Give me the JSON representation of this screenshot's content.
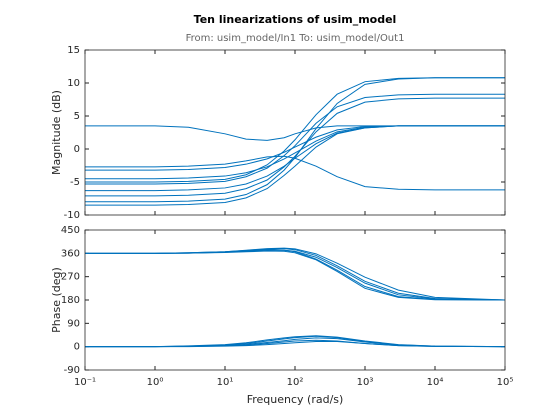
{
  "chart_data": [
    {
      "type": "line",
      "title": "Ten linearizations of usim_model",
      "subtitle": "From: usim_model/In1  To: usim_model/Out1",
      "ylabel": "Magnitude (dB)",
      "xscale": "log",
      "grid": false,
      "x": [
        0.1,
        1,
        3,
        10,
        20,
        40,
        70,
        100,
        200,
        400,
        1000,
        3000,
        10000,
        100000
      ],
      "xlim": [
        0.1,
        100000
      ],
      "xticks": [
        0.1,
        1,
        10,
        100,
        1000,
        10000,
        100000
      ],
      "ylim": [
        -10,
        15
      ],
      "yticks": [
        -10,
        -5,
        0,
        5,
        10,
        15
      ],
      "series": [
        {
          "color": "#0072bd",
          "values": [
            3.5,
            3.5,
            3.3,
            2.3,
            1.5,
            1.3,
            1.7,
            2.3,
            3.2,
            3.5,
            3.5,
            3.5,
            3.5,
            3.5
          ]
        },
        {
          "color": "#0072bd",
          "values": [
            -2.7,
            -2.7,
            -2.6,
            -2.3,
            -1.8,
            -1.2,
            -1.1,
            -1.4,
            -2.6,
            -4.2,
            -5.7,
            -6.1,
            -6.2,
            -6.2
          ]
        },
        {
          "color": "#0072bd",
          "values": [
            -3.2,
            -3.2,
            -3.1,
            -2.8,
            -2.3,
            -1.5,
            -0.5,
            0.3,
            1.8,
            2.9,
            3.4,
            3.5,
            3.5,
            3.5
          ]
        },
        {
          "color": "#0072bd",
          "values": [
            -4.5,
            -4.5,
            -4.4,
            -4.1,
            -3.6,
            -2.7,
            -1.5,
            -0.6,
            1.2,
            2.6,
            3.3,
            3.5,
            3.5,
            3.5
          ]
        },
        {
          "color": "#0072bd",
          "values": [
            -5,
            -5,
            -4.9,
            -4.6,
            -3.9,
            -2.4,
            -0.3,
            1.4,
            5.2,
            8.3,
            10.2,
            10.7,
            10.8,
            10.8
          ]
        },
        {
          "color": "#0072bd",
          "values": [
            -5.3,
            -5.3,
            -5.2,
            -4.9,
            -4.2,
            -2.9,
            -1,
            0.5,
            3.9,
            6.4,
            7.8,
            8.2,
            8.3,
            8.3
          ]
        },
        {
          "color": "#0072bd",
          "values": [
            -6.3,
            -6.3,
            -6.2,
            -5.9,
            -5.3,
            -4.1,
            -2.6,
            -1.4,
            0.8,
            2.4,
            3.2,
            3.5,
            3.5,
            3.5
          ]
        },
        {
          "color": "#0072bd",
          "values": [
            -7.1,
            -7.1,
            -7,
            -6.7,
            -6,
            -4.7,
            -2.7,
            -1.1,
            2.6,
            5.4,
            7.1,
            7.6,
            7.7,
            7.7
          ]
        },
        {
          "color": "#0072bd",
          "values": [
            -8,
            -8,
            -7.9,
            -7.6,
            -6.9,
            -5.4,
            -3.2,
            -1.3,
            3.1,
            6.9,
            9.8,
            10.6,
            10.8,
            10.8
          ]
        },
        {
          "color": "#0072bd",
          "values": [
            -8.5,
            -8.5,
            -8.4,
            -8.1,
            -7.4,
            -6,
            -4,
            -2.6,
            0.3,
            2.3,
            3.2,
            3.5,
            3.5,
            3.5
          ]
        }
      ]
    },
    {
      "type": "line",
      "ylabel": "Phase (deg)",
      "xlabel": "Frequency  (rad/s)",
      "xscale": "log",
      "grid": false,
      "x": [
        0.1,
        1,
        3,
        10,
        20,
        40,
        70,
        100,
        200,
        400,
        1000,
        3000,
        10000,
        100000
      ],
      "xlim": [
        0.1,
        100000
      ],
      "xticks": [
        {
          "value": 0.1,
          "label": "10⁻¹"
        },
        {
          "value": 1,
          "label": "10⁰"
        },
        {
          "value": 10,
          "label": "10¹"
        },
        {
          "value": 100,
          "label": "10²"
        },
        {
          "value": 1000,
          "label": "10³"
        },
        {
          "value": 10000,
          "label": "10⁴"
        },
        {
          "value": 100000,
          "label": "10⁵"
        }
      ],
      "ylim": [
        -90,
        450
      ],
      "yticks": [
        -90,
        0,
        90,
        180,
        270,
        360,
        450
      ],
      "series": [
        {
          "color": "#0072bd",
          "values": [
            360,
            360,
            361,
            364,
            368,
            372,
            372,
            368,
            345,
            305,
            245,
            200,
            184,
            180
          ]
        },
        {
          "color": "#0072bd",
          "values": [
            360,
            360,
            361,
            365,
            370,
            376,
            378,
            374,
            352,
            312,
            252,
            206,
            186,
            180
          ]
        },
        {
          "color": "#0072bd",
          "values": [
            360,
            360,
            362,
            366,
            371,
            374,
            372,
            366,
            338,
            295,
            232,
            193,
            182,
            180
          ]
        },
        {
          "color": "#0072bd",
          "values": [
            360,
            360,
            361,
            363,
            366,
            369,
            368,
            362,
            335,
            290,
            225,
            190,
            181,
            180
          ]
        },
        {
          "color": "#0072bd",
          "values": [
            360,
            360,
            362,
            366,
            372,
            378,
            380,
            377,
            358,
            322,
            268,
            218,
            190,
            180
          ]
        },
        {
          "color": "#0072bd",
          "values": [
            0,
            0,
            1,
            3,
            6,
            12,
            18,
            22,
            25,
            22,
            12,
            4,
            1,
            0
          ]
        },
        {
          "color": "#0072bd",
          "values": [
            0,
            0,
            2,
            6,
            12,
            22,
            30,
            35,
            40,
            35,
            20,
            7,
            2,
            0
          ]
        },
        {
          "color": "#0072bd",
          "values": [
            0,
            0,
            1,
            4,
            9,
            16,
            23,
            28,
            34,
            31,
            18,
            6,
            1,
            0
          ]
        },
        {
          "color": "#0072bd",
          "values": [
            0,
            0,
            3,
            8,
            15,
            26,
            34,
            38,
            42,
            37,
            22,
            8,
            2,
            0
          ]
        },
        {
          "color": "#0072bd",
          "values": [
            0,
            0,
            0,
            2,
            4,
            8,
            12,
            15,
            20,
            20,
            12,
            4,
            1,
            0
          ]
        }
      ]
    }
  ]
}
